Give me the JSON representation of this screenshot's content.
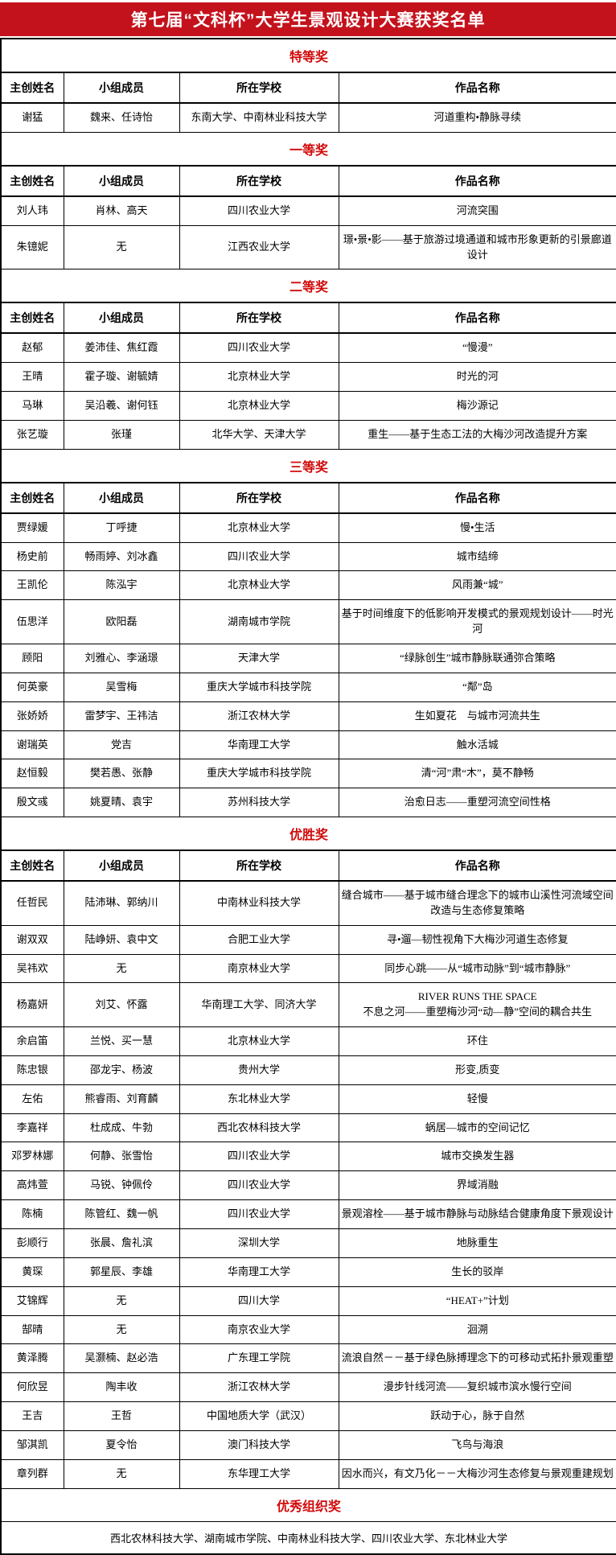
{
  "title": "第七届“文科杯”大学生景观设计大赛获奖名单",
  "colors": {
    "title_bg": "#c4121c",
    "title_text": "#ffffff",
    "accent_red": "#d10a0a",
    "border": "#000000"
  },
  "columns": [
    "主创姓名",
    "小组成员",
    "所在学校",
    "作品名称"
  ],
  "sections": [
    {
      "name": "特等奖",
      "has_header": true,
      "rows": [
        [
          "谢猛",
          "魏来、任诗怡",
          "东南大学、中南林业科技大学",
          "河道重构•静脉寻续"
        ]
      ]
    },
    {
      "name": "一等奖",
      "has_header": true,
      "rows": [
        [
          "刘人玮",
          "肖林、高天",
          "四川农业大学",
          "河流突围"
        ],
        [
          "朱镱妮",
          "无",
          "江西农业大学",
          "璟•景•影——基于旅游过境通道和城市形象更新的引景廊道设计"
        ]
      ]
    },
    {
      "name": "二等奖",
      "has_header": true,
      "rows": [
        [
          "赵郁",
          "姜沛佳、焦红霞",
          "四川农业大学",
          "“慢漫”"
        ],
        [
          "王晴",
          "霍子璇、谢毓婧",
          "北京林业大学",
          "时光的河"
        ],
        [
          "马琳",
          "吴沿羲、谢何钰",
          "北京林业大学",
          "梅沙源记"
        ],
        [
          "张艺璇",
          "张瑾",
          "北华大学、天津大学",
          "重生——基于生态工法的大梅沙河改造提升方案"
        ]
      ]
    },
    {
      "name": "三等奖",
      "has_header": true,
      "rows": [
        [
          "贾绿媛",
          "丁呼捷",
          "北京林业大学",
          "慢•生活"
        ],
        [
          "杨史前",
          "畅雨婷、刘冰鑫",
          "四川农业大学",
          "城市结缔"
        ],
        [
          "王凯伦",
          "陈泓宇",
          "北京林业大学",
          "风雨兼“城”"
        ],
        [
          "伍思洋",
          "欧阳磊",
          "湖南城市学院",
          "基于时间维度下的低影响开发模式的景观规划设计——时光河"
        ],
        [
          "顾阳",
          "刘雅心、李涵璟",
          "天津大学",
          "“绿脉创生”城市静脉联通弥合策略"
        ],
        [
          "何英豪",
          "吴雪梅",
          "重庆大学城市科技学院",
          "“鄰”岛"
        ],
        [
          "张娇娇",
          "雷梦宇、王祎洁",
          "浙江农林大学",
          "生如夏花　与城市河流共生"
        ],
        [
          "谢瑞英",
          "党吉",
          "华南理工大学",
          "触水活城"
        ],
        [
          "赵恒毅",
          "樊若愚、张静",
          "重庆大学城市科技学院",
          "清“河”肃“木”，莫不静畅"
        ],
        [
          "殷文彧",
          "姚夏晴、袁宇",
          "苏州科技大学",
          "治愈日志——重塑河流空间性格"
        ]
      ]
    },
    {
      "name": "优胜奖",
      "has_header": true,
      "rows": [
        [
          "任哲民",
          "陆沛琳、郭纳川",
          "中南林业科技大学",
          "缝合城市——基于城市缝合理念下的城市山溪性河流域空间改造与生态修复策略"
        ],
        [
          "谢双双",
          "陆峥妍、袁中文",
          "合肥工业大学",
          "寻•遛—韧性视角下大梅沙河道生态修复"
        ],
        [
          "吴祎欢",
          "无",
          "南京林业大学",
          "同步心跳——从“城市动脉”到“城市静脉”"
        ],
        [
          "杨嘉妍",
          "刘艾、怀露",
          "华南理工大学、同济大学",
          "RIVER RUNS THE SPACE\n不息之河——重塑梅沙河“动—静”空间的耦合共生"
        ],
        [
          "余启笛",
          "兰悦、买一慧",
          "北京林业大学",
          "环住"
        ],
        [
          "陈忠银",
          "邵龙宇、杨波",
          "贵州大学",
          "形变,质变"
        ],
        [
          "左佑",
          "熊睿雨、刘育麟",
          "东北林业大学",
          "轻慢"
        ],
        [
          "李嘉祥",
          "杜成成、牛勃",
          "西北农林科技大学",
          "蜗居—城市的空间记忆"
        ],
        [
          "邓罗林娜",
          "何静、张雪怡",
          "四川农业大学",
          "城市交换发生器"
        ],
        [
          "高炜萱",
          "马锐、钟佩伶",
          "四川农业大学",
          "界域消融"
        ],
        [
          "陈楠",
          "陈管红、魏一帆",
          "四川农业大学",
          "景观溶栓——基于城市静脉与动脉结合健康角度下景观设计"
        ],
        [
          "彭顺行",
          "张晨、詹礼滨",
          "深圳大学",
          "地脉重生"
        ],
        [
          "黄琛",
          "郭星辰、李雄",
          "华南理工大学",
          "生长的驳岸"
        ],
        [
          "艾锦辉",
          "无",
          "四川大学",
          "“HEAT+”计划"
        ],
        [
          "郜晴",
          "无",
          "南京农业大学",
          "洄溯"
        ],
        [
          "黄泽腾",
          "吴灏楠、赵必浩",
          "广东理工学院",
          "流浪自然－－基于绿色脉搏理念下的可移动式拓扑景观重塑"
        ],
        [
          "何欣昱",
          "陶丰收",
          "浙江农林大学",
          "漫步针线河流——复织城市滨水慢行空间"
        ],
        [
          "王吉",
          "王哲",
          "中国地质大学（武汉）",
          "跃动于心，脉于自然"
        ],
        [
          "邹淇凯",
          "夏令怡",
          "澳门科技大学",
          "飞鸟与海浪"
        ],
        [
          "章列群",
          "无",
          "东华理工大学",
          "因水而兴，有文乃化－－大梅沙河生态修复与景观重建规划"
        ]
      ]
    },
    {
      "name": "优秀组织奖",
      "has_header": false,
      "full_rows": [
        "西北农林科技大学、湖南城市学院、中南林业科技大学、四川农业大学、东北林业大学"
      ]
    }
  ]
}
